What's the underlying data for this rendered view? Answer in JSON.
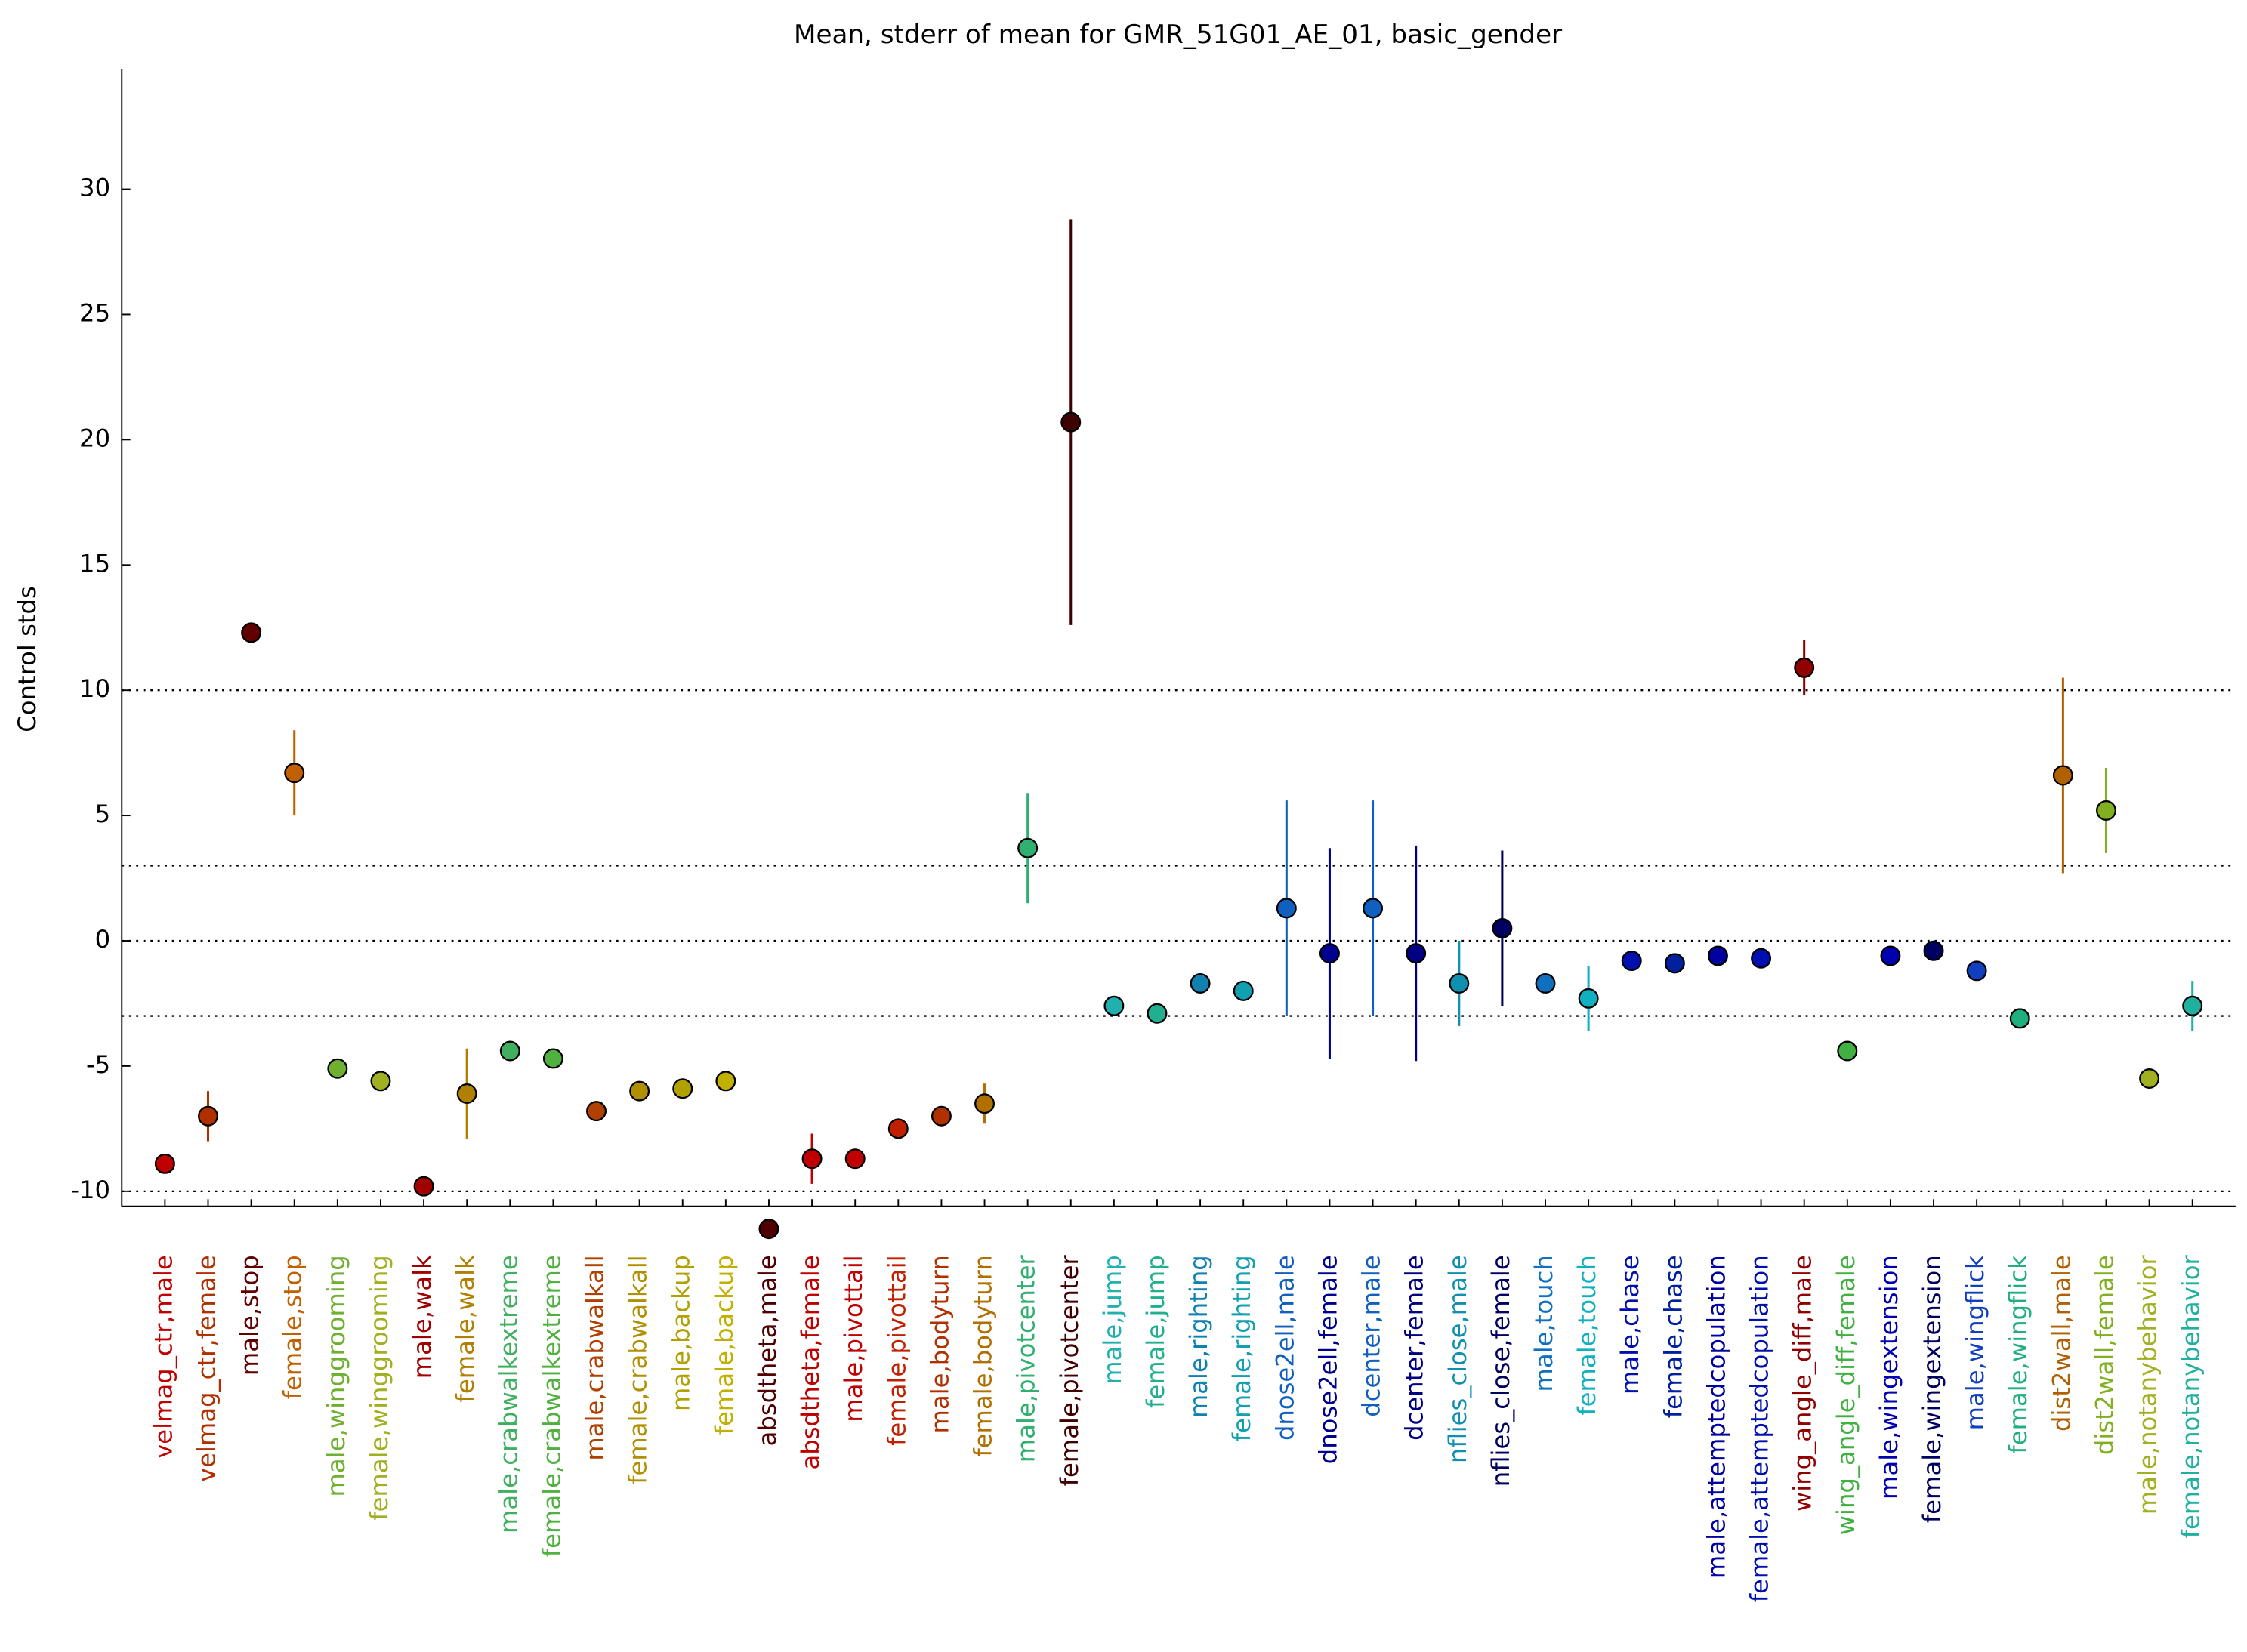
{
  "chart_data": {
    "type": "errorbar",
    "title": "Mean, stderr of mean for GMR_51G01_AE_01, basic_gender",
    "y_label": "Control stds",
    "categories": [
      "velmag_ctr,male",
      "velmag_ctr,female",
      "male,stop",
      "female,stop",
      "male,winggrooming",
      "female,winggrooming",
      "male,walk",
      "female,walk",
      "male,crabwalkextreme",
      "female,crabwalkextreme",
      "male,crabwalkall",
      "female,crabwalkall",
      "male,backup",
      "female,backup",
      "absdtheta,male",
      "absdtheta,female",
      "male,pivottail",
      "female,pivottail",
      "male,bodyturn",
      "female,bodyturn",
      "male,pivotcenter",
      "female,pivotcenter",
      "male,jump",
      "female,jump",
      "male,righting",
      "female,righting",
      "dnose2ell,male",
      "dnose2ell,female",
      "dcenter,male",
      "dcenter,female",
      "nflies_close,male",
      "nflies_close,female",
      "male,touch",
      "female,touch",
      "male,chase",
      "female,chase",
      "male,attemptedcopulation",
      "female,attemptedcopulation",
      "wing_angle_diff,male",
      "wing_angle_diff,female",
      "male,wingextension",
      "female,wingextension",
      "male,wingflick",
      "female,wingflick",
      "dist2wall,male",
      "dist2wall,female",
      "male,notanybehavior",
      "female,notanybehavior"
    ],
    "values": [
      -8.9,
      -7.0,
      12.3,
      6.7,
      -5.1,
      -5.6,
      -9.8,
      -6.1,
      -4.4,
      -4.7,
      -6.8,
      -6.0,
      -5.9,
      -5.6,
      -11.5,
      -8.7,
      -8.7,
      -7.5,
      -7.0,
      -6.5,
      3.7,
      20.7,
      -2.6,
      -2.9,
      -1.7,
      -2.0,
      1.3,
      -0.5,
      1.3,
      -0.5,
      -1.7,
      0.5,
      -1.7,
      -2.3,
      -0.8,
      -0.9,
      -0.6,
      -0.7,
      10.9,
      -4.4,
      -0.6,
      -0.4,
      -1.2,
      -3.1,
      6.6,
      5.2,
      -5.5,
      -2.6
    ],
    "errors": [
      0.2,
      1.0,
      0.2,
      1.7,
      0.1,
      0.1,
      0.1,
      1.8,
      0.1,
      0.1,
      0.1,
      0.2,
      0.1,
      0.1,
      0.1,
      1.0,
      0.1,
      0.1,
      0.1,
      0.8,
      2.2,
      8.1,
      0.1,
      0.1,
      0.3,
      0.1,
      4.3,
      4.2,
      4.3,
      4.3,
      1.7,
      3.1,
      0.2,
      1.3,
      0.1,
      0.1,
      0.1,
      0.1,
      1.1,
      0.2,
      0.1,
      0.1,
      0.1,
      0.1,
      3.9,
      1.7,
      0.1,
      1.0
    ],
    "colors": [
      "#c00000",
      "#b03000",
      "#600000",
      "#c06000",
      "#70b030",
      "#a0b020",
      "#a00000",
      "#b08000",
      "#40b060",
      "#50b040",
      "#b04000",
      "#b09000",
      "#b0a000",
      "#c0b000",
      "#500000",
      "#c00000",
      "#c00000",
      "#c02000",
      "#b03000",
      "#b07000",
      "#30b070",
      "#400000",
      "#20b0b0",
      "#20b090",
      "#1080b0",
      "#10a0b0",
      "#1060c0",
      "#000090",
      "#1060c0",
      "#000080",
      "#1090b0",
      "#000060",
      "#1070c0",
      "#10b0c0",
      "#0010b0",
      "#0020a0",
      "#0000a0",
      "#0010b0",
      "#900000",
      "#40b040",
      "#0000b0",
      "#000060",
      "#1040c0",
      "#20b080",
      "#b06000",
      "#80b020",
      "#a0b020",
      "#20b0a0"
    ],
    "ylim": [
      -10.6,
      34.8
    ],
    "yticks": [
      -10,
      -5,
      0,
      5,
      10,
      15,
      20,
      25,
      30
    ],
    "reference_lines": [
      10,
      3,
      0,
      -3,
      -10
    ]
  }
}
